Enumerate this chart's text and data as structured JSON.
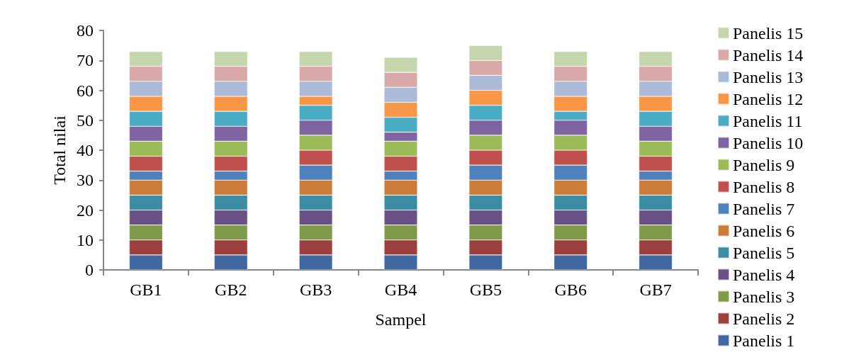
{
  "chart_data": {
    "type": "bar",
    "stacked": true,
    "xlabel": "Sampel",
    "ylabel": "Total nilai",
    "categories": [
      "GB1",
      "GB2",
      "GB3",
      "GB4",
      "GB5",
      "GB6",
      "GB7"
    ],
    "ylim": [
      0,
      80
    ],
    "yticks": [
      0,
      10,
      20,
      30,
      40,
      50,
      60,
      70,
      80
    ],
    "grid": false,
    "legend": "right",
    "series": [
      {
        "name": "Panelis 1",
        "color": "#4067a0",
        "values": [
          5,
          5,
          5,
          5,
          5,
          5,
          5
        ]
      },
      {
        "name": "Panelis 2",
        "color": "#9c403f",
        "values": [
          5,
          5,
          5,
          5,
          5,
          5,
          5
        ]
      },
      {
        "name": "Panelis 3",
        "color": "#7f9a48",
        "values": [
          5,
          5,
          5,
          5,
          5,
          5,
          5
        ]
      },
      {
        "name": "Panelis 4",
        "color": "#695185",
        "values": [
          5,
          5,
          5,
          5,
          5,
          5,
          5
        ]
      },
      {
        "name": "Panelis 5",
        "color": "#3c8ca3",
        "values": [
          5,
          5,
          5,
          5,
          5,
          5,
          5
        ]
      },
      {
        "name": "Panelis 6",
        "color": "#cc7b38",
        "values": [
          5,
          5,
          5,
          5,
          5,
          5,
          5
        ]
      },
      {
        "name": "Panelis 7",
        "color": "#4f81bd",
        "values": [
          3,
          3,
          5,
          3,
          5,
          5,
          3
        ]
      },
      {
        "name": "Panelis 8",
        "color": "#c0504d",
        "values": [
          5,
          5,
          5,
          5,
          5,
          5,
          5
        ]
      },
      {
        "name": "Panelis 9",
        "color": "#9bbb59",
        "values": [
          5,
          5,
          5,
          5,
          5,
          5,
          5
        ]
      },
      {
        "name": "Panelis 10",
        "color": "#8064a2",
        "values": [
          5,
          5,
          5,
          3,
          5,
          5,
          5
        ]
      },
      {
        "name": "Panelis 11",
        "color": "#4bacc6",
        "values": [
          5,
          5,
          5,
          5,
          5,
          3,
          5
        ]
      },
      {
        "name": "Panelis 12",
        "color": "#f79646",
        "values": [
          5,
          5,
          3,
          5,
          5,
          5,
          5
        ]
      },
      {
        "name": "Panelis 13",
        "color": "#aabad7",
        "values": [
          5,
          5,
          5,
          5,
          5,
          5,
          5
        ]
      },
      {
        "name": "Panelis 14",
        "color": "#d9a9a9",
        "values": [
          5,
          5,
          5,
          5,
          5,
          5,
          5
        ]
      },
      {
        "name": "Panelis 15",
        "color": "#c6d6ac",
        "values": [
          5,
          5,
          5,
          5,
          5,
          5,
          5
        ]
      }
    ]
  }
}
